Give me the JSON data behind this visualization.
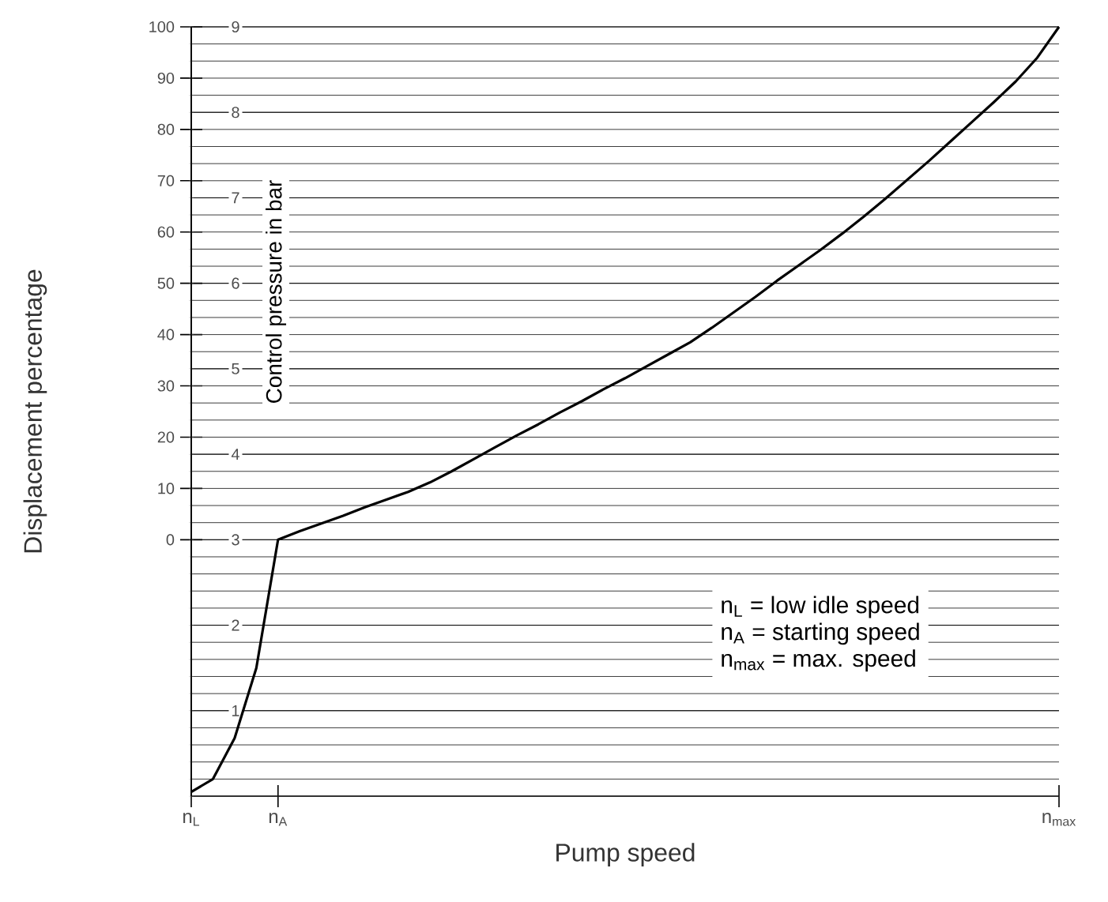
{
  "chart_data": {
    "type": "line",
    "xlabel": "Pump speed",
    "ylabel": "Displacement percentage",
    "y2label": "Control pressure in bar",
    "categories": [
      "n$_{L}$",
      null,
      null,
      null,
      "n$_{A}$",
      null,
      null,
      null,
      null,
      null,
      null,
      null,
      null,
      null,
      null,
      null,
      null,
      null,
      null,
      null,
      null,
      null,
      null,
      null,
      null,
      null,
      null,
      null,
      null,
      null,
      null,
      null,
      null,
      null,
      null,
      null,
      null,
      null,
      null,
      null,
      "n$_{max}$"
    ],
    "ylim": [
      -50,
      100
    ],
    "yticks": [
      0,
      10,
      20,
      30,
      40,
      50,
      60,
      70,
      80,
      90,
      100
    ],
    "y2lim": [
      0,
      9
    ],
    "y2ticks": [
      1,
      2,
      3,
      4,
      5,
      6,
      7,
      8,
      9
    ],
    "grid": true,
    "series": [
      {
        "color": "#000000",
        "axis": "y2",
        "values": [
          0.05,
          0.2,
          0.68,
          1.5,
          3.0,
          3.1,
          3.19,
          3.28,
          3.38,
          3.47,
          3.56,
          3.67,
          3.8,
          3.94,
          4.08,
          4.22,
          4.35,
          4.49,
          4.62,
          4.76,
          4.89,
          5.03,
          5.17,
          5.31,
          5.48,
          5.66,
          5.84,
          6.03,
          6.21,
          6.39,
          6.58,
          6.78,
          6.99,
          7.21,
          7.43,
          7.66,
          7.89,
          8.12,
          8.36,
          8.64,
          9
        ]
      }
    ],
    "annotations": [
      "n$_{L}$ = low idle speed",
      "n$_{A}$ = starting speed",
      "n$_{max}$ = max. speed"
    ]
  }
}
